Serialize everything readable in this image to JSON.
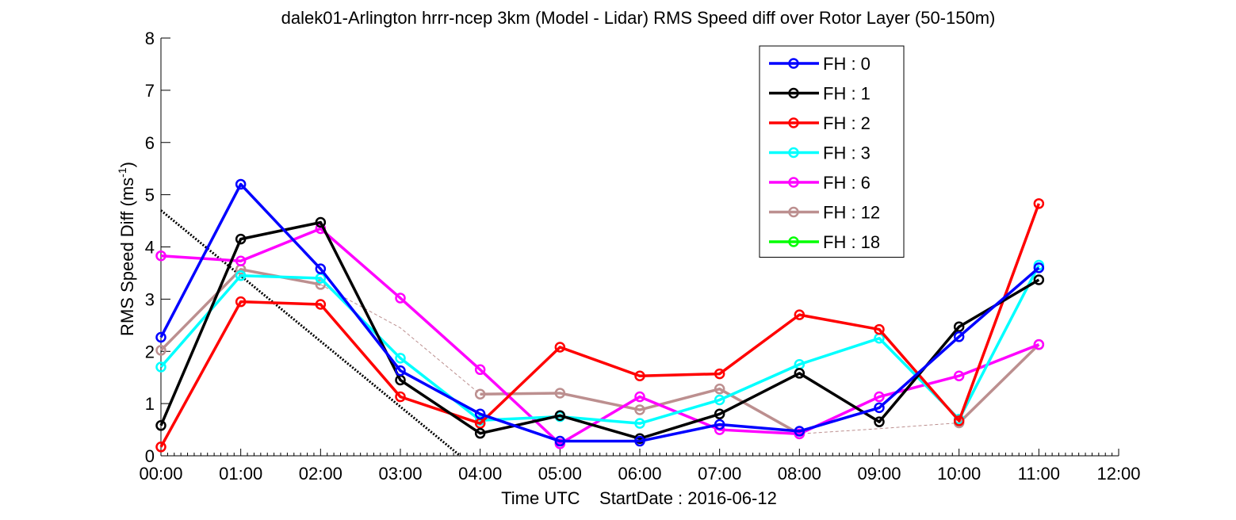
{
  "chart_data": {
    "type": "line",
    "title": "dalek01-Arlington hrrr-ncep 3km (Model - Lidar) RMS Speed diff over Rotor Layer (50-150m)",
    "xlabel": "Time UTC    StartDate : 2016-06-12",
    "ylabel": "RMS Speed Diff (ms",
    "ylabel_sup": "-1",
    "ylabel_end": ")",
    "xlim": [
      0,
      12
    ],
    "ylim": [
      0,
      8
    ],
    "x_ticks": [
      0,
      1,
      2,
      3,
      4,
      5,
      6,
      7,
      8,
      9,
      10,
      11,
      12
    ],
    "x_tick_labels": [
      "00:00",
      "01:00",
      "02:00",
      "03:00",
      "04:00",
      "05:00",
      "06:00",
      "07:00",
      "08:00",
      "09:00",
      "10:00",
      "11:00",
      "12:00"
    ],
    "y_ticks": [
      0,
      1,
      2,
      3,
      4,
      5,
      6,
      7,
      8
    ],
    "y_tick_labels": [
      "0",
      "1",
      "2",
      "3",
      "4",
      "5",
      "6",
      "7",
      "8"
    ],
    "grid": false,
    "legend_position": "top-right",
    "series": [
      {
        "name": "FH : 0",
        "color": "#0000ff",
        "x": [
          0,
          1,
          2,
          3,
          4,
          5,
          6,
          7,
          8,
          9,
          10,
          11
        ],
        "values": [
          2.27,
          5.2,
          3.58,
          1.63,
          0.8,
          0.28,
          0.28,
          0.6,
          0.47,
          0.92,
          2.28,
          3.6
        ]
      },
      {
        "name": "FH : 1",
        "color": "#000000",
        "x": [
          0,
          1,
          2,
          3,
          4,
          5,
          6,
          7,
          8,
          9,
          10,
          11
        ],
        "values": [
          0.58,
          4.15,
          4.47,
          1.45,
          0.43,
          0.77,
          0.33,
          0.8,
          1.58,
          0.65,
          2.47,
          3.37
        ]
      },
      {
        "name": "FH : 2",
        "color": "#ff0000",
        "x": [
          0,
          1,
          2,
          3,
          4,
          5,
          6,
          7,
          8,
          9,
          10,
          11
        ],
        "values": [
          0.17,
          2.95,
          2.9,
          1.13,
          0.62,
          2.08,
          1.53,
          1.57,
          2.7,
          2.42,
          0.67,
          4.83
        ]
      },
      {
        "name": "FH : 3",
        "color": "#00ffff",
        "x": [
          0,
          1,
          2,
          3,
          4,
          5,
          6,
          7,
          8,
          9,
          10,
          11
        ],
        "values": [
          1.7,
          3.45,
          3.4,
          1.87,
          0.68,
          0.75,
          0.62,
          1.07,
          1.75,
          2.25,
          0.7,
          3.65
        ]
      },
      {
        "name": "FH : 6",
        "color": "#ff00ff",
        "x": [
          0,
          1,
          2,
          3,
          4,
          5,
          6,
          7,
          8,
          9,
          10,
          11
        ],
        "values": [
          3.83,
          3.73,
          4.35,
          3.02,
          1.65,
          0.23,
          1.13,
          0.5,
          0.42,
          1.13,
          1.53,
          2.13
        ]
      },
      {
        "name": "FH : 12",
        "color": "#bc8f8f",
        "x": [
          0,
          1,
          2,
          3,
          4,
          5,
          6,
          7,
          8,
          9,
          10,
          11
        ],
        "values": [
          2.02,
          3.57,
          3.28,
          null,
          1.18,
          1.2,
          0.88,
          1.28,
          0.42,
          null,
          0.63,
          2.13
        ]
      },
      {
        "name": "FH : 18",
        "color": "#00ff00",
        "x": [],
        "values": []
      }
    ],
    "annotations": {
      "thin_dashed_line": {
        "color": "#bc8f8f",
        "x": [
          2,
          3,
          4,
          5,
          6,
          7,
          8,
          9,
          10
        ],
        "values": [
          3.28,
          2.45,
          1.18,
          1.2,
          0.88,
          1.28,
          0.42,
          0.52,
          0.63
        ]
      },
      "black_dotted_line": {
        "color": "#000000",
        "x": [
          0,
          3.75
        ],
        "values": [
          4.7,
          0
        ]
      }
    }
  }
}
